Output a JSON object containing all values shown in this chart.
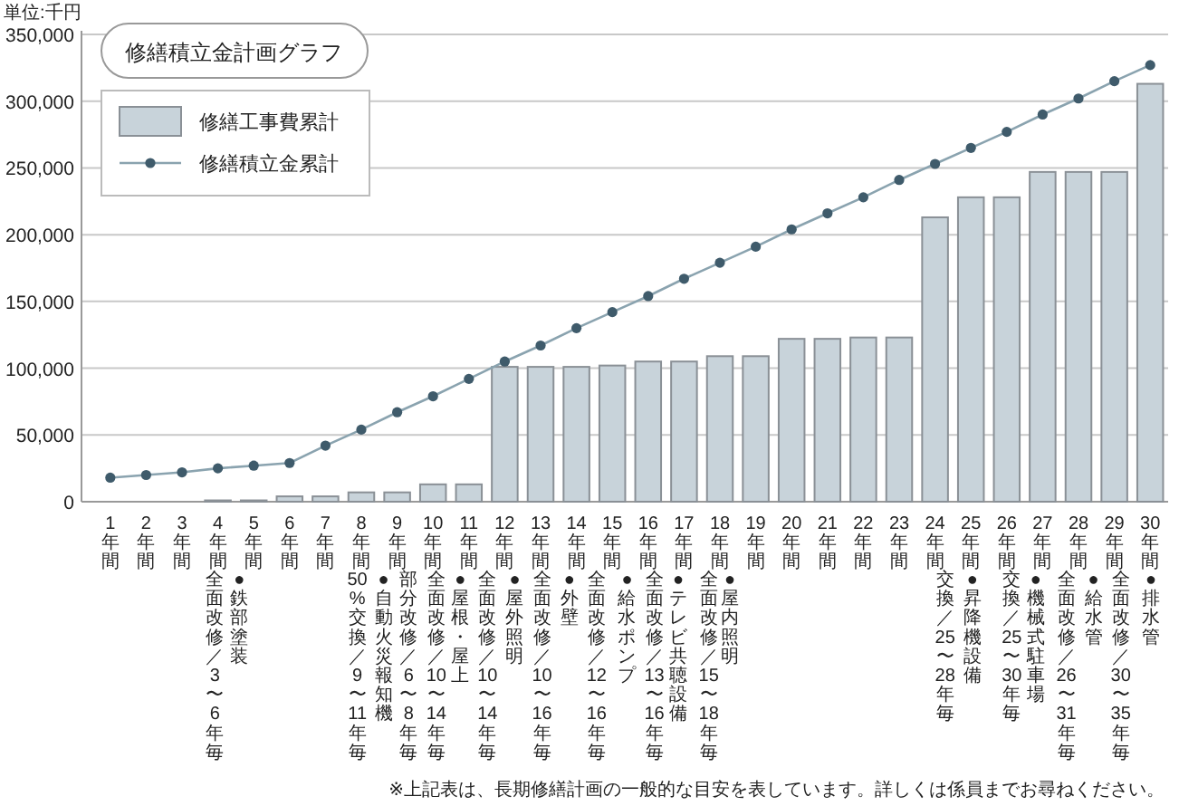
{
  "chart_data": {
    "type": "bar",
    "title": "修繕積立金計画グラフ",
    "ylabel": "単位:千円",
    "categories": [
      "1年間",
      "2年間",
      "3年間",
      "4年間",
      "5年間",
      "6年間",
      "7年間",
      "8年間",
      "9年間",
      "10年間",
      "11年間",
      "12年間",
      "13年間",
      "14年間",
      "15年間",
      "16年間",
      "17年間",
      "18年間",
      "19年間",
      "20年間",
      "21年間",
      "22年間",
      "23年間",
      "24年間",
      "25年間",
      "26年間",
      "27年間",
      "28年間",
      "29年間",
      "30年間"
    ],
    "series": [
      {
        "name": "修繕工事費累計",
        "type": "bar",
        "color": "#c8d3da",
        "values": [
          0,
          0,
          0,
          1000,
          1000,
          4000,
          4000,
          7000,
          7000,
          13000,
          13000,
          101000,
          101000,
          101000,
          102000,
          105000,
          105000,
          109000,
          109000,
          122000,
          122000,
          123000,
          123000,
          213000,
          228000,
          228000,
          247000,
          247000,
          247000,
          313000
        ]
      },
      {
        "name": "修繕積立金累計",
        "type": "line",
        "color": "#8aa3af",
        "marker": "circle",
        "values": [
          18000,
          20000,
          22000,
          25000,
          27000,
          29000,
          42000,
          54000,
          67000,
          79000,
          92000,
          105000,
          117000,
          130000,
          142000,
          154000,
          167000,
          179000,
          191000,
          204000,
          216000,
          228000,
          241000,
          253000,
          265000,
          277000,
          290000,
          302000,
          315000,
          327000
        ]
      }
    ],
    "ylim": [
      0,
      350000
    ],
    "yticks": [
      {
        "value": 0,
        "label": "0"
      },
      {
        "value": 50000,
        "label": "50,000"
      },
      {
        "value": 100000,
        "label": "100,000"
      },
      {
        "value": 150000,
        "label": "150,000"
      },
      {
        "value": 200000,
        "label": "200,000"
      },
      {
        "value": 250000,
        "label": "250,000"
      },
      {
        "value": 300000,
        "label": "300,000"
      },
      {
        "value": 350000,
        "label": "350,000"
      }
    ],
    "grid": "y",
    "legend": "top left",
    "annotations": [
      "全面改修／3〜6年毎",
      "●鉄部塗装",
      "50%交換／9〜11年毎",
      "●自動火災報知機",
      "部分改修／6〜8年毎",
      "全面改修／10〜14年毎",
      "●屋根・屋上",
      "全面改修／10〜14年毎",
      "●屋外照明",
      "全面改修／10〜16年毎",
      "●外壁",
      "全面改修／12〜16年毎",
      "●給水ポンプ",
      "全面改修／13〜16年毎",
      "●テレビ共聴設備",
      "全面改修／15〜18年毎",
      "●屋内照明",
      "交換／25〜28年毎",
      "●昇降機設備",
      "交換／25〜30年毎",
      "●機械式駐車場",
      "全面改修／26〜31年毎",
      "●給水管",
      "全面改修／30〜35年毎",
      "●排水管",
      "※上記表は、長期修繕計画の一般的な目安を表しています。詳しくは係員までお尋ねください。"
    ]
  }
}
